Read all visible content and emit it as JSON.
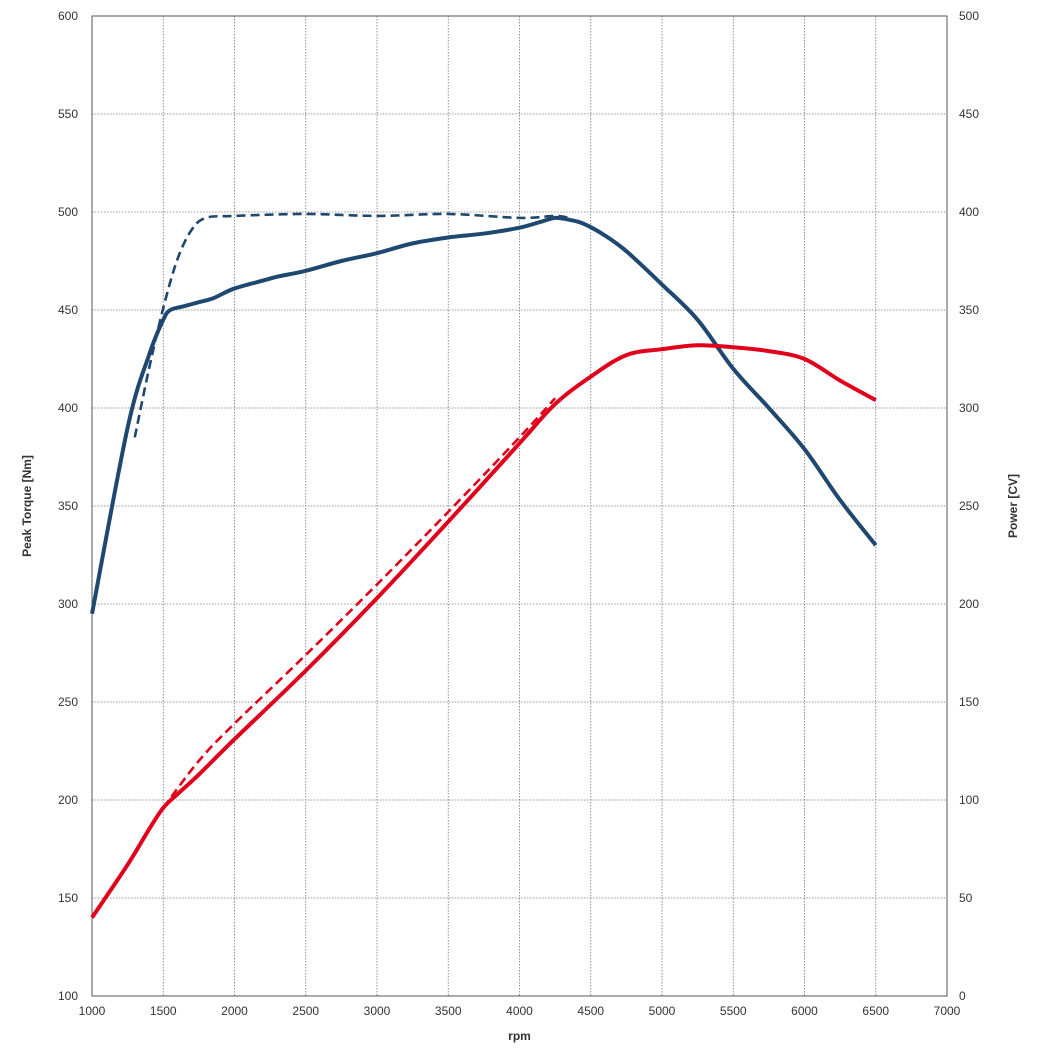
{
  "chart_data": {
    "type": "line",
    "xlabel": "rpm",
    "ylabel_left": "Peak Torque [Nm]",
    "ylabel_right": "Power [CV]",
    "xlim": [
      1000,
      7000
    ],
    "ylim_left": [
      100,
      600
    ],
    "ylim_right": [
      0,
      500
    ],
    "x_ticks": [
      1000,
      1500,
      2000,
      2500,
      3000,
      3500,
      4000,
      4500,
      5000,
      5500,
      6000,
      6500,
      7000
    ],
    "y_ticks_left": [
      100,
      150,
      200,
      250,
      300,
      350,
      400,
      450,
      500,
      550,
      600
    ],
    "y_ticks_right": [
      0,
      50,
      100,
      150,
      200,
      250,
      300,
      350,
      400,
      450,
      500
    ],
    "grid": true,
    "series": [
      {
        "axis": "left",
        "style": "solid",
        "color": "#1f4870",
        "x": [
          1000,
          1250,
          1400,
          1500,
          1550,
          1650,
          1750,
          1850,
          2000,
          2200,
          2300,
          2500,
          2750,
          3000,
          3250,
          3500,
          3750,
          4000,
          4150,
          4250,
          4350,
          4450,
          4600,
          4750,
          5000,
          5250,
          5500,
          5750,
          6000,
          6250,
          6500
        ],
        "y": [
          295,
          390,
          427,
          445,
          450,
          452,
          454,
          456,
          461,
          465,
          467,
          470,
          475,
          479,
          484,
          487,
          489,
          492,
          495,
          497,
          496,
          494,
          488,
          480,
          463,
          445,
          420,
          400,
          379,
          353,
          330
        ]
      },
      {
        "axis": "left",
        "style": "dashed",
        "color": "#1f4870",
        "x": [
          1300,
          1400,
          1500,
          1600,
          1700,
          1800,
          2000,
          2500,
          3000,
          3500,
          4000,
          4250,
          4350
        ],
        "y": [
          385,
          420,
          451,
          476,
          491,
          497,
          498,
          499,
          498,
          499,
          497,
          498,
          497
        ]
      },
      {
        "axis": "right",
        "style": "solid",
        "color": "#e0001b",
        "x": [
          1000,
          1250,
          1400,
          1500,
          1600,
          1750,
          2000,
          2500,
          3000,
          3500,
          4000,
          4250,
          4500,
          4750,
          5000,
          5250,
          5500,
          5750,
          6000,
          6250,
          6500
        ],
        "y": [
          40,
          67,
          85,
          96,
          103,
          113,
          131,
          166,
          203,
          242,
          282,
          302,
          316,
          327,
          330,
          332,
          331,
          329,
          325,
          314,
          304
        ]
      },
      {
        "axis": "right",
        "style": "dashed",
        "color": "#e0001b",
        "x": [
          1500,
          1750,
          2000,
          2500,
          3000,
          3500,
          4000,
          4250
        ],
        "y": [
          96,
          120,
          139,
          174,
          210,
          247,
          285,
          305
        ]
      }
    ]
  }
}
